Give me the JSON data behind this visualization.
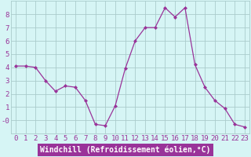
{
  "x": [
    0,
    1,
    2,
    3,
    4,
    5,
    6,
    7,
    8,
    9,
    10,
    11,
    12,
    13,
    14,
    15,
    16,
    17,
    18,
    19,
    20,
    21,
    22,
    23
  ],
  "y": [
    4.1,
    4.1,
    4.0,
    3.0,
    2.2,
    2.6,
    2.5,
    1.5,
    -0.3,
    -0.4,
    1.1,
    3.9,
    6.0,
    7.0,
    7.0,
    8.5,
    7.8,
    8.5,
    4.2,
    2.5,
    1.5,
    0.9,
    -0.3,
    -0.5
  ],
  "line_color": "#993399",
  "marker": "D",
  "marker_size": 2.0,
  "bg_color": "#d6f5f5",
  "grid_color": "#aacccc",
  "xlabel": "Windchill (Refroidissement éolien,°C)",
  "xlabel_color": "#ffffff",
  "xlabel_bg": "#993399",
  "ylim": [
    -1.0,
    9.0
  ],
  "ytick_vals": [
    8,
    7,
    6,
    5,
    4,
    3,
    2,
    1,
    0
  ],
  "ytick_labels": [
    "8",
    "7",
    "6",
    "5",
    "4",
    "3",
    "2",
    "1",
    "-0"
  ],
  "tick_fontsize": 6.5,
  "xlabel_fontsize": 7.0,
  "spine_color": "#aacccc"
}
